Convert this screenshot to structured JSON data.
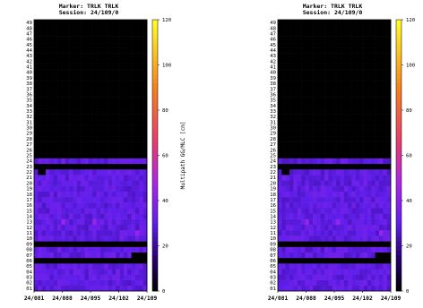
{
  "chart_data": [
    {
      "type": "heatmap",
      "title": "Marker: TRLK TRLK",
      "subtitle": "Session: 24/109/0",
      "x_tick_labels": [
        "24/081",
        "24/088",
        "24/095",
        "24/102",
        "24/109"
      ],
      "rows": [
        "01",
        "02",
        "03",
        "04",
        "05",
        "06",
        "07",
        "08",
        "09",
        "10",
        "11",
        "12",
        "13",
        "14",
        "15",
        "16",
        "17",
        "18",
        "19",
        "20",
        "21",
        "22",
        "23",
        "24",
        "25",
        "26",
        "27",
        "28",
        "29",
        "30",
        "31",
        "32",
        "33",
        "34",
        "35",
        "36",
        "37",
        "38",
        "39",
        "40",
        "41",
        "42",
        "43",
        "44",
        "45",
        "46",
        "47",
        "48",
        "49"
      ],
      "columns": 29,
      "no_data_rows": [
        "06",
        "09",
        "23",
        "25",
        "26",
        "27",
        "28",
        "29",
        "30",
        "31",
        "32",
        "33",
        "34",
        "35",
        "36",
        "37",
        "38",
        "39",
        "40",
        "41",
        "42",
        "43",
        "44",
        "45",
        "46",
        "47",
        "48",
        "49"
      ],
      "no_data_cells": [
        [
          "07",
          25
        ],
        [
          "07",
          26
        ],
        [
          "07",
          27
        ],
        [
          "07",
          28
        ],
        [
          "22",
          1
        ],
        [
          "22",
          2
        ]
      ],
      "hot_cells": [
        [
          "13",
          7
        ],
        [
          "13",
          15
        ],
        [
          "11",
          26
        ]
      ],
      "colorbar": {
        "label": "Multipath GG/MLC [cm]",
        "ticks": [
          0,
          20,
          40,
          60,
          80,
          100,
          120
        ],
        "range": [
          0,
          120
        ]
      },
      "base_color": "#6a1ee8"
    },
    {
      "type": "heatmap",
      "title": "Marker: TRLK TRLK",
      "subtitle": "Session: 24/109/0",
      "x_tick_labels": [
        "24/081",
        "24/088",
        "24/095",
        "24/102",
        "24/109"
      ],
      "rows": [
        "01",
        "02",
        "03",
        "04",
        "05",
        "06",
        "07",
        "08",
        "09",
        "10",
        "11",
        "12",
        "13",
        "14",
        "15",
        "16",
        "17",
        "18",
        "19",
        "20",
        "21",
        "22",
        "23",
        "24",
        "25",
        "26",
        "27",
        "28",
        "29",
        "30",
        "31",
        "32",
        "33",
        "34",
        "35",
        "36",
        "37",
        "38",
        "39",
        "40",
        "41",
        "42",
        "43",
        "44",
        "45",
        "46",
        "47",
        "48",
        "49"
      ],
      "columns": 29,
      "no_data_rows": [
        "06",
        "09",
        "23",
        "25",
        "26",
        "27",
        "28",
        "29",
        "30",
        "31",
        "32",
        "33",
        "34",
        "35",
        "36",
        "37",
        "38",
        "39",
        "40",
        "41",
        "42",
        "43",
        "44",
        "45",
        "46",
        "47",
        "48",
        "49"
      ],
      "no_data_cells": [
        [
          "07",
          25
        ],
        [
          "07",
          26
        ],
        [
          "07",
          27
        ],
        [
          "07",
          28
        ],
        [
          "22",
          1
        ],
        [
          "22",
          2
        ]
      ],
      "hot_cells": [
        [
          "13",
          7
        ],
        [
          "13",
          15
        ],
        [
          "11",
          26
        ]
      ],
      "colorbar": {
        "label": "",
        "ticks": [
          0,
          20,
          40,
          60,
          80,
          100,
          120
        ],
        "range": [
          0,
          120
        ]
      },
      "base_color": "#6a1ee8"
    }
  ]
}
